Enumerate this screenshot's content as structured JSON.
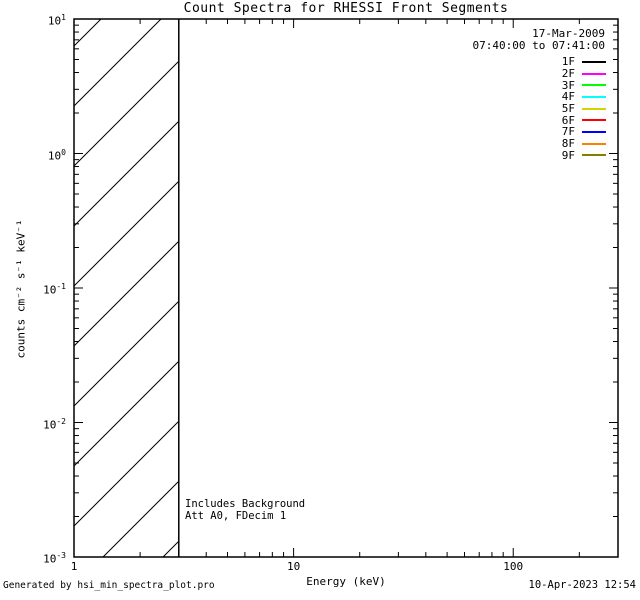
{
  "header": {
    "title": "Count Spectra for RHESSI Front Segments"
  },
  "interval": {
    "date": "17-Mar-2009",
    "time_range": "07:40:00 to 07:41:00"
  },
  "annotations": {
    "line1": "Includes Background",
    "line2": "Att A0, FDecim 1"
  },
  "footer": {
    "generated_by": "Generated by hsi_min_spectra_plot.pro",
    "timestamp": "10-Apr-2023 12:54"
  },
  "chart_data": {
    "type": "line",
    "title": "Count Spectra for RHESSI Front Segments",
    "xlabel": "Energy (keV)",
    "ylabel": "counts cm⁻² s⁻¹ keV⁻¹",
    "xscale": "log",
    "yscale": "log",
    "xlim": [
      1,
      300
    ],
    "ylim": [
      0.001,
      10
    ],
    "grid": false,
    "x_major_ticks": [
      1,
      10,
      100
    ],
    "x_tick_labels": [
      "1",
      "10",
      "100"
    ],
    "y_major_ticks": [
      10,
      1,
      0.1,
      0.01,
      0.001
    ],
    "y_tick_labels": [
      {
        "base": "10",
        "exp": "1"
      },
      {
        "base": "10",
        "exp": "0"
      },
      {
        "base": "10",
        "exp": "-1"
      },
      {
        "base": "10",
        "exp": "-2"
      },
      {
        "base": "10",
        "exp": "-3"
      }
    ],
    "series": [],
    "hatched_region": {
      "x_range": [
        1,
        3
      ],
      "style": "diagonal-hatch",
      "boundary_line_x": 3,
      "note": "hatched band from 1 to 3 keV, no spectral curves drawn"
    },
    "legend": {
      "position": "top-right",
      "entries": [
        {
          "label": "1F",
          "color": "#000000"
        },
        {
          "label": "2F",
          "color": "#ff00ff"
        },
        {
          "label": "3F",
          "color": "#00ff00"
        },
        {
          "label": "4F",
          "color": "#00ffff"
        },
        {
          "label": "5F",
          "color": "#d4d400"
        },
        {
          "label": "6F",
          "color": "#ff0000"
        },
        {
          "label": "7F",
          "color": "#0000ff"
        },
        {
          "label": "8F",
          "color": "#ff8000"
        },
        {
          "label": "9F",
          "color": "#7f7f00"
        }
      ]
    }
  }
}
